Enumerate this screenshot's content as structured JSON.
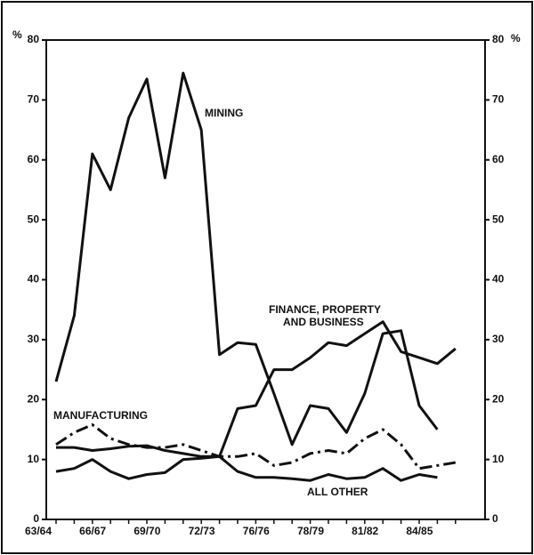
{
  "chart_data": {
    "type": "line",
    "y_unit_label": "%",
    "categories": [
      "63/64",
      null,
      null,
      "66/67",
      null,
      null,
      "69/70",
      null,
      null,
      "72/73",
      null,
      null,
      "76/76",
      null,
      null,
      "78/79",
      null,
      null,
      "81/82",
      null,
      null,
      "84/85",
      null
    ],
    "ylim": [
      0,
      80
    ],
    "yticks": [
      0,
      10,
      20,
      30,
      40,
      50,
      60,
      70,
      80
    ],
    "y2lim": [
      0,
      80
    ],
    "y2ticks": [
      0,
      10,
      20,
      30,
      40,
      50,
      60,
      70,
      80
    ],
    "series": [
      {
        "label": [
          "MINING"
        ],
        "color": "#111111",
        "style": "solid",
        "values": [
          23,
          34,
          61,
          55,
          67,
          73.5,
          57,
          74.5,
          65,
          27.5,
          29.5,
          29.2,
          21,
          12.5,
          19,
          18.5,
          14.5,
          21,
          31,
          31.5,
          19,
          15,
          null
        ]
      },
      {
        "label": [
          "FINANCE, PROPERTY",
          "AND BUSINESS"
        ],
        "color": "#111111",
        "style": "solid",
        "values": [
          12,
          12,
          11.5,
          11.8,
          12.2,
          12.3,
          11.5,
          11,
          10.5,
          10.5,
          18.5,
          19,
          25,
          25,
          27,
          29.5,
          29,
          31,
          33,
          28,
          27,
          26,
          28.5
        ]
      },
      {
        "label": [
          "MANUFACTURING"
        ],
        "color": "#111111",
        "style": "dashdot",
        "values": [
          12.5,
          14.5,
          15.8,
          13.5,
          12.5,
          12,
          12,
          12.5,
          11.5,
          10.5,
          10.5,
          11,
          9,
          9.5,
          11,
          11.5,
          11,
          13.5,
          15,
          12.5,
          8.5,
          9,
          9.5
        ]
      },
      {
        "label": [
          "ALL OTHER"
        ],
        "color": "#111111",
        "style": "solid",
        "values": [
          8,
          8.5,
          10,
          8,
          6.8,
          7.5,
          7.8,
          10,
          10.2,
          10.5,
          8,
          7,
          7,
          6.8,
          6.5,
          7.5,
          6.8,
          7,
          8.5,
          6.5,
          7.5,
          7,
          null
        ]
      }
    ]
  }
}
